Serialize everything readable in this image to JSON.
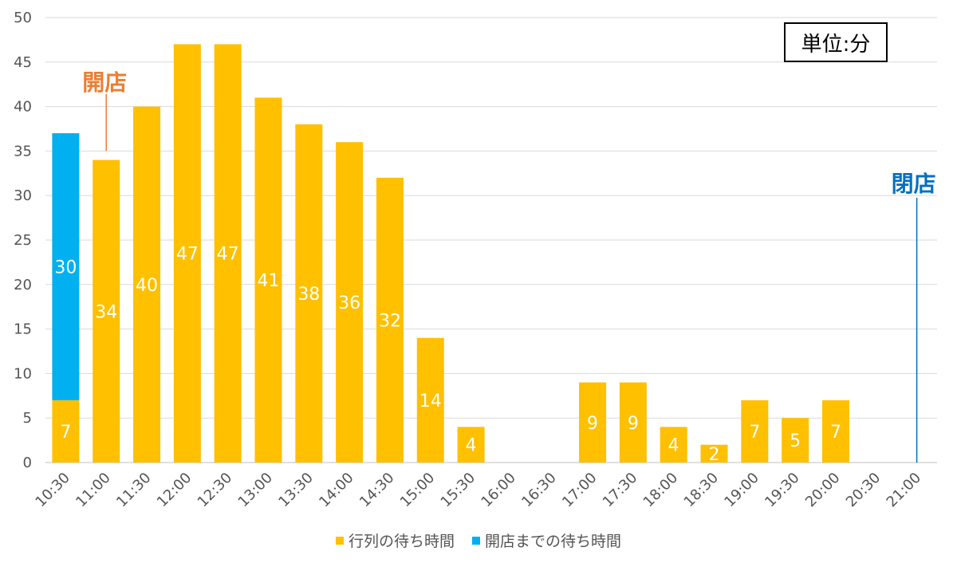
{
  "chart_data": {
    "type": "bar",
    "stacked": true,
    "categories": [
      "10:30",
      "11:00",
      "11:30",
      "12:00",
      "12:30",
      "13:00",
      "13:30",
      "14:00",
      "14:30",
      "15:00",
      "15:30",
      "16:00",
      "16:30",
      "17:00",
      "17:30",
      "18:00",
      "18:30",
      "19:00",
      "19:30",
      "20:00",
      "20:30",
      "21:00"
    ],
    "series": [
      {
        "name": "行列の待ち時間",
        "color": "#FFC000",
        "values": [
          7,
          34,
          40,
          47,
          47,
          41,
          38,
          36,
          32,
          14,
          4,
          0,
          0,
          9,
          9,
          4,
          2,
          7,
          5,
          7,
          0,
          0
        ]
      },
      {
        "name": "開店までの待ち時間",
        "color": "#00B0F0",
        "values": [
          30,
          0,
          0,
          0,
          0,
          0,
          0,
          0,
          0,
          0,
          0,
          0,
          0,
          0,
          0,
          0,
          0,
          0,
          0,
          0,
          0,
          0
        ]
      }
    ],
    "ylim": [
      0,
      50
    ],
    "yticks": [
      0,
      5,
      10,
      15,
      20,
      25,
      30,
      35,
      40,
      45,
      50
    ],
    "grid": true,
    "legend_position": "bottom",
    "annotations": [
      {
        "text": "開店",
        "category": "11:00",
        "color": "#ED7D31"
      },
      {
        "text": "閉店",
        "category": "21:00",
        "color": "#0070C0"
      }
    ]
  },
  "unit_label": "単位:分"
}
